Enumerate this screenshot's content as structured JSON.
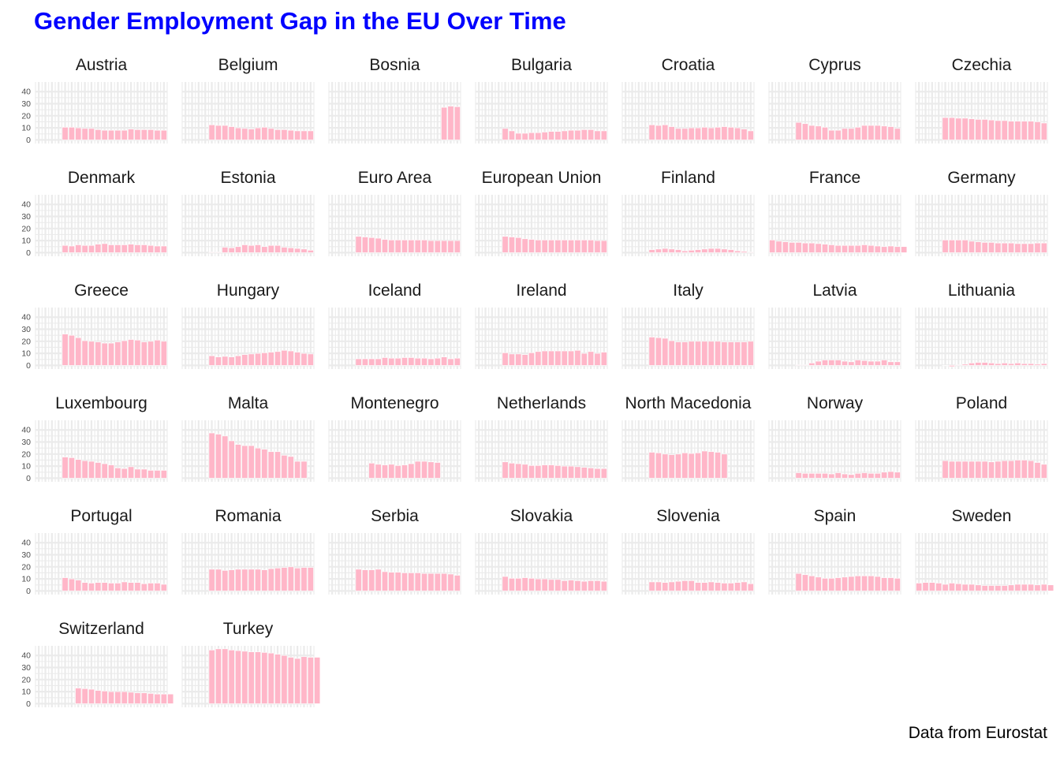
{
  "title": "Gender Employment Gap in the EU Over Time",
  "caption": "Data from Eurostat",
  "colors": {
    "title": "#0000ff",
    "bar_fill": "#ffb6c8",
    "bar_outline": "#ffffff",
    "grid": "#ebebeb"
  },
  "chart_data": {
    "type": "bar",
    "layout": "facet-wrap",
    "ncol": 7,
    "ylim": [
      -3,
      48
    ],
    "y_breaks": [
      0,
      10,
      20,
      30,
      40
    ],
    "y_tick_labels": [
      "0",
      "10",
      "20",
      "30",
      "40"
    ],
    "x_slots": 20,
    "grid": true,
    "facets": [
      {
        "name": "Austria",
        "start": 4,
        "values": [
          10.5,
          10.5,
          10,
          9.5,
          9.5,
          8.5,
          8,
          8,
          8,
          8,
          9,
          8.5,
          8.5,
          8.5,
          8,
          8
        ]
      },
      {
        "name": "Belgium",
        "start": 4,
        "values": [
          12.5,
          12,
          12,
          11,
          10,
          9.5,
          9,
          10,
          10.5,
          9.5,
          8.5,
          8.5,
          8,
          7.5,
          7.5,
          7.5
        ]
      },
      {
        "name": "Bosnia",
        "start": 17,
        "values": [
          27,
          28,
          27.5
        ]
      },
      {
        "name": "Bulgaria",
        "start": 4,
        "values": [
          9.5,
          7.5,
          5.5,
          5.5,
          6,
          6,
          6.5,
          7,
          7,
          7.5,
          8,
          8,
          8.5,
          8.5,
          7.5,
          7.5
        ]
      },
      {
        "name": "Croatia",
        "start": 4,
        "values": [
          12.5,
          12,
          12.5,
          11,
          9.5,
          9.5,
          10,
          10,
          10.5,
          10,
          10.5,
          11,
          10.5,
          10,
          9,
          7.5
        ]
      },
      {
        "name": "Cyprus",
        "start": 4,
        "values": [
          14.5,
          13.5,
          12,
          11.5,
          10.5,
          8,
          8,
          9.5,
          9.5,
          10.5,
          12,
          12,
          12,
          11.5,
          11,
          9.5
        ]
      },
      {
        "name": "Czechia",
        "start": 4,
        "values": [
          18.5,
          18.5,
          18,
          18,
          17.5,
          17,
          17,
          16.5,
          16,
          16,
          15.5,
          15.5,
          15.5,
          15.5,
          15,
          14
        ]
      },
      {
        "name": "Denmark",
        "start": 4,
        "values": [
          6,
          5.5,
          6.5,
          6,
          6,
          7,
          7.5,
          6.5,
          6.5,
          6.5,
          7,
          6.5,
          6.5,
          6,
          5.5,
          5.5
        ]
      },
      {
        "name": "Estonia",
        "start": 4,
        "values": [
          0.5,
          0.5,
          4.5,
          4,
          5,
          6.5,
          6,
          6.5,
          5,
          6,
          6,
          4.5,
          4,
          3.5,
          3,
          2
        ]
      },
      {
        "name": "Euro Area",
        "start": 4,
        "values": [
          13.5,
          13,
          12.5,
          12,
          11,
          10.5,
          10.5,
          10.5,
          10.5,
          10.5,
          10.5,
          10,
          10,
          10,
          10,
          10
        ]
      },
      {
        "name": "European Union",
        "start": 4,
        "values": [
          13.5,
          13,
          12.5,
          11.5,
          11,
          10.5,
          10.5,
          10.5,
          10.5,
          10.5,
          10.5,
          10.5,
          10.5,
          10.5,
          10,
          10
        ]
      },
      {
        "name": "Finland",
        "start": 4,
        "values": [
          2.5,
          3,
          3.5,
          3,
          2.5,
          1.5,
          2,
          2.5,
          3,
          3.5,
          3.5,
          3,
          2.5,
          1.5,
          1,
          0.5
        ]
      },
      {
        "name": "France",
        "start": 0,
        "values": [
          10.5,
          9.5,
          9,
          8.5,
          8.5,
          8,
          8,
          7.5,
          7,
          6.5,
          6,
          6,
          6,
          6,
          6.5,
          6,
          5.5,
          5,
          5.5,
          5,
          5
        ]
      },
      {
        "name": "Germany",
        "start": 4,
        "values": [
          10.5,
          10.5,
          10.5,
          10.5,
          9.5,
          9,
          8.5,
          8.5,
          8,
          8,
          8,
          7.5,
          7.5,
          7.5,
          8,
          8
        ]
      },
      {
        "name": "Greece",
        "start": 4,
        "values": [
          26,
          25,
          23,
          20.5,
          20,
          19.5,
          18.5,
          18.5,
          19.5,
          20.5,
          21.5,
          21,
          19.5,
          20,
          21,
          20
        ]
      },
      {
        "name": "Hungary",
        "start": 4,
        "values": [
          8,
          7,
          7.5,
          7,
          8,
          9,
          9.5,
          10,
          10.5,
          11,
          11.5,
          12.5,
          12,
          11,
          10,
          9.5
        ]
      },
      {
        "name": "Iceland",
        "start": 4,
        "values": [
          5.5,
          5.5,
          5.5,
          5.5,
          6.5,
          6,
          6,
          6.5,
          6.5,
          6,
          6,
          5.5,
          6,
          7,
          5.5,
          6
        ]
      },
      {
        "name": "Ireland",
        "start": 4,
        "values": [
          10.5,
          9.5,
          9.5,
          9,
          10.5,
          11.5,
          12,
          12,
          12,
          12,
          12,
          12.5,
          10,
          11.5,
          10,
          11
        ]
      },
      {
        "name": "Italy",
        "start": 4,
        "values": [
          23.5,
          23,
          22.5,
          20.5,
          19.5,
          19.5,
          20,
          20,
          20,
          20,
          20,
          19.5,
          19.5,
          19.5,
          19.5,
          20
        ]
      },
      {
        "name": "Latvia",
        "start": 4,
        "values": [
          0.5,
          0.5,
          2,
          3.5,
          4.5,
          4.5,
          4.5,
          3.5,
          3,
          4.5,
          4,
          3.5,
          3.5,
          4.5,
          3,
          3
        ]
      },
      {
        "name": "Lithuania",
        "start": 4,
        "values": [
          0,
          -1,
          0.5,
          1,
          2,
          2.5,
          2.5,
          2,
          1.5,
          2,
          1.5,
          2,
          1.5,
          1.5,
          1,
          1.5
        ]
      },
      {
        "name": "Luxembourg",
        "start": 4,
        "values": [
          17.5,
          17,
          15.5,
          14.5,
          14,
          13,
          12,
          11,
          8.5,
          8,
          9.5,
          7.5,
          7.5,
          6.5,
          6.5,
          6.5
        ]
      },
      {
        "name": "Malta",
        "start": 4,
        "values": [
          37.5,
          36.5,
          35,
          31,
          28,
          27,
          27,
          25,
          24,
          22,
          22,
          19,
          18,
          14,
          14
        ]
      },
      {
        "name": "Montenegro",
        "start": 6,
        "values": [
          12.5,
          11.5,
          11,
          11.5,
          10.5,
          11,
          12,
          14,
          14,
          13.5,
          13
        ]
      },
      {
        "name": "Netherlands",
        "start": 4,
        "values": [
          13.5,
          12.5,
          12,
          11.5,
          10.5,
          10.5,
          11,
          11,
          10.5,
          10,
          10,
          9.5,
          9,
          8.5,
          8,
          8
        ]
      },
      {
        "name": "North Macedonia",
        "start": 4,
        "values": [
          21.5,
          21,
          20,
          19.5,
          20,
          21,
          20.5,
          21,
          22.5,
          22,
          21.5,
          20
        ]
      },
      {
        "name": "Norway",
        "start": 4,
        "values": [
          4.5,
          4,
          4,
          4,
          4,
          3.5,
          4.5,
          3.5,
          3,
          4,
          4.5,
          4,
          4,
          5,
          5.5,
          5
        ]
      },
      {
        "name": "Poland",
        "start": 4,
        "values": [
          14.5,
          14,
          14,
          14,
          14,
          14,
          14,
          13.5,
          14,
          14.5,
          14.5,
          15,
          15,
          14.5,
          13,
          11.5
        ]
      },
      {
        "name": "Portugal",
        "start": 4,
        "values": [
          11,
          10,
          9,
          7,
          6.5,
          7,
          7,
          6.5,
          6.5,
          7.5,
          7,
          7,
          6,
          6.5,
          6.5,
          5.5
        ]
      },
      {
        "name": "Romania",
        "start": 4,
        "values": [
          18,
          18,
          17,
          17.5,
          18,
          18,
          18,
          18,
          17.5,
          18.5,
          19,
          19.5,
          20,
          19,
          19.5,
          19.5
        ]
      },
      {
        "name": "Serbia",
        "start": 4,
        "values": [
          18,
          17.5,
          17.5,
          18,
          16,
          15.5,
          15.5,
          15,
          15,
          15,
          14.5,
          14.5,
          14.5,
          14.5,
          14,
          13
        ]
      },
      {
        "name": "Slovakia",
        "start": 4,
        "values": [
          12,
          10.5,
          10.5,
          11,
          10.5,
          10,
          10,
          9.5,
          9.5,
          8.5,
          9,
          8.5,
          8,
          8.5,
          8.5,
          8
        ]
      },
      {
        "name": "Slovenia",
        "start": 4,
        "values": [
          7.5,
          7.5,
          7,
          7.5,
          8,
          8.5,
          8.5,
          7,
          7,
          7.5,
          7,
          6.5,
          6.5,
          7,
          7.5,
          6
        ]
      },
      {
        "name": "Spain",
        "start": 4,
        "values": [
          14.5,
          13.5,
          12.5,
          11.5,
          10.5,
          10.5,
          11,
          11.5,
          12,
          12.5,
          12.5,
          12.5,
          12,
          11,
          11,
          10.5
        ]
      },
      {
        "name": "Sweden",
        "start": 0,
        "values": [
          6.5,
          7,
          7,
          6.5,
          5.5,
          6.5,
          6,
          5.5,
          5.5,
          5,
          4.5,
          4.5,
          4.5,
          4.5,
          5,
          5.5,
          5.5,
          5.5,
          5,
          5.5,
          5
        ]
      },
      {
        "name": "Switzerland",
        "start": 6,
        "values": [
          13,
          12.5,
          12,
          11,
          10.5,
          10,
          10,
          10,
          9.5,
          9,
          9,
          8.5,
          8,
          8,
          8
        ]
      },
      {
        "name": "Turkey",
        "start": 4,
        "values": [
          44.5,
          45.5,
          45.5,
          44.5,
          44,
          43.5,
          43,
          43,
          42.5,
          42,
          41,
          40,
          38.5,
          37.5,
          39,
          38.5,
          38.5
        ]
      }
    ]
  }
}
